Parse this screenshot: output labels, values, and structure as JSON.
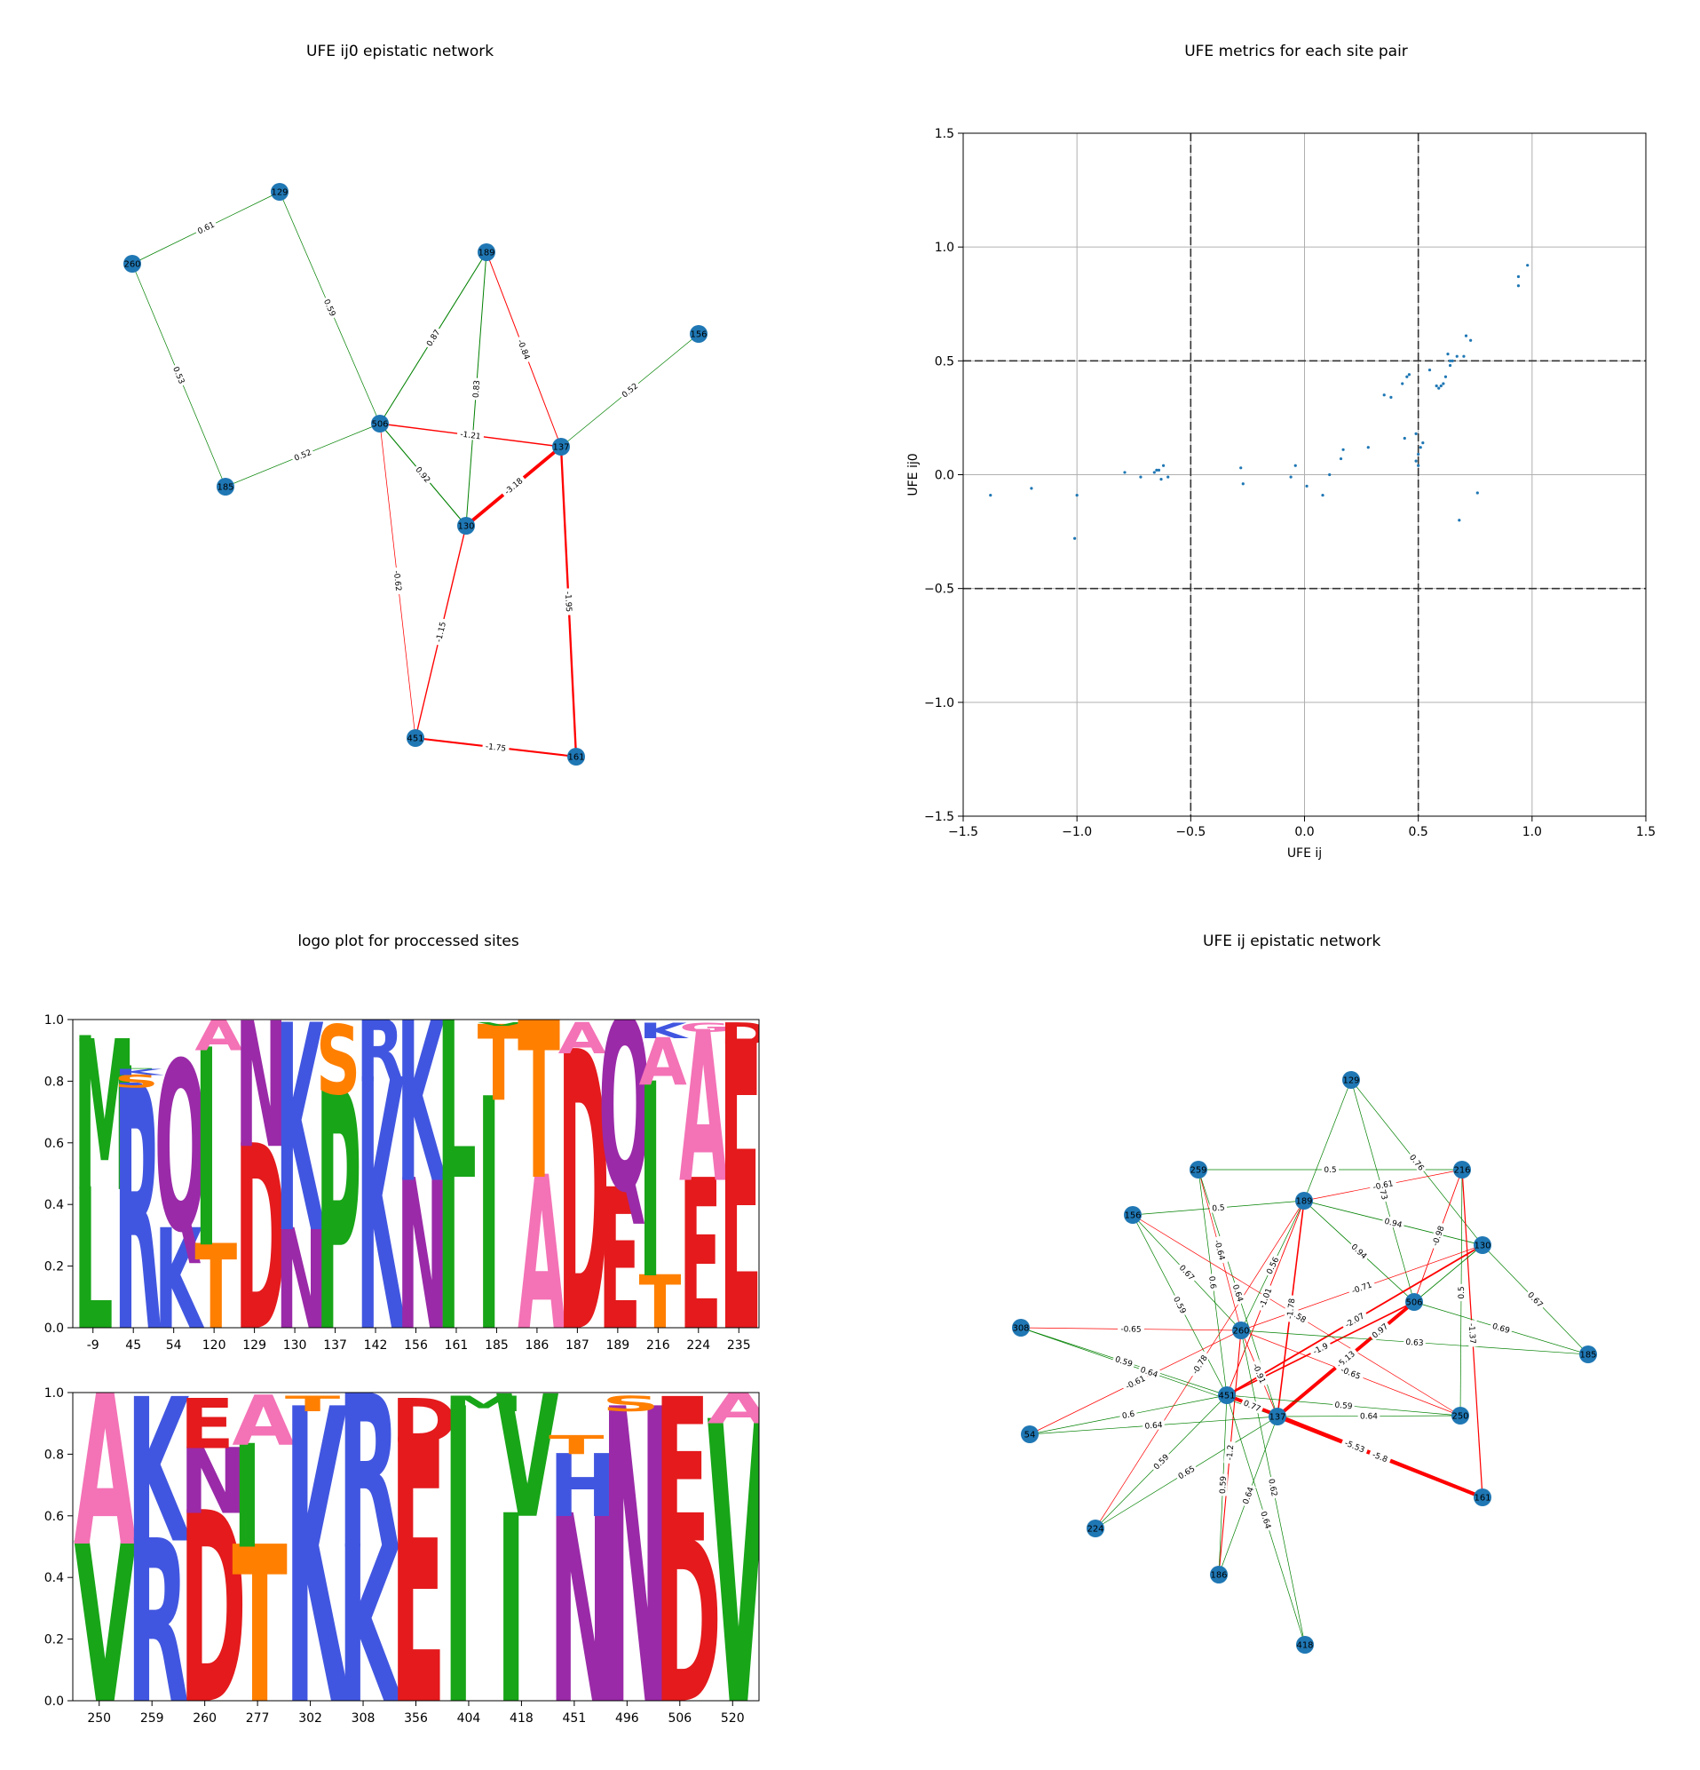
{
  "net1": {
    "title": "UFE ij0 epistatic network",
    "nodes": [
      "129",
      "260",
      "189",
      "156",
      "506",
      "137",
      "185",
      "130",
      "451",
      "161"
    ],
    "edges": [
      {
        "a": "260",
        "b": "129",
        "w": 0.61,
        "label": "0.61"
      },
      {
        "a": "129",
        "b": "506",
        "w": 0.59,
        "label": "0.59"
      },
      {
        "a": "260",
        "b": "185",
        "w": 0.53,
        "label": "0.53"
      },
      {
        "a": "185",
        "b": "506",
        "w": 0.52,
        "label": "0.52"
      },
      {
        "a": "506",
        "b": "189",
        "w": 0.87,
        "label": "0.87"
      },
      {
        "a": "189",
        "b": "130",
        "w": 0.83,
        "label": "0.83"
      },
      {
        "a": "189",
        "b": "137",
        "w": -0.84,
        "label": "-0.84"
      },
      {
        "a": "156",
        "b": "137",
        "w": 0.52,
        "label": "0.52"
      },
      {
        "a": "506",
        "b": "137",
        "w": -1.21,
        "label": "-1.21"
      },
      {
        "a": "506",
        "b": "130",
        "w": 0.92,
        "label": "0.92"
      },
      {
        "a": "130",
        "b": "137",
        "w": -3.18,
        "label": "-3.18"
      },
      {
        "a": "506",
        "b": "451",
        "w": -0.62,
        "label": "-0.62"
      },
      {
        "a": "130",
        "b": "451",
        "w": -1.15,
        "label": "-1.15"
      },
      {
        "a": "137",
        "b": "161",
        "w": -1.95,
        "label": "-1.95"
      },
      {
        "a": "451",
        "b": "161",
        "w": -1.75,
        "label": "-1.75"
      }
    ]
  },
  "scatter": {
    "title": "UFE metrics for each site pair",
    "xlabel": "UFE ij",
    "ylabel": "UFE ij0",
    "tick_labels": [
      "−1.5",
      "−1.0",
      "−0.5",
      "0.0",
      "0.5",
      "1.0",
      "1.5"
    ]
  },
  "logo": {
    "title": "logo plot for proccessed sites",
    "ytick_labels": [
      "0.0",
      "0.2",
      "0.4",
      "0.6",
      "0.8",
      "1.0"
    ]
  },
  "net2": {
    "title": "UFE ij epistatic network",
    "nodes": [
      "129",
      "259",
      "216",
      "156",
      "189",
      "130",
      "506",
      "308",
      "260",
      "185",
      "451",
      "137",
      "250",
      "54",
      "161",
      "224",
      "186",
      "418"
    ],
    "edges": [
      {
        "a": "129",
        "b": "189",
        "w": 0.6,
        "label": ""
      },
      {
        "a": "129",
        "b": "506",
        "w": 0.73,
        "label": "0.73"
      },
      {
        "a": "129",
        "b": "130",
        "w": 0.76,
        "label": "0.76"
      },
      {
        "a": "259",
        "b": "216",
        "w": 0.5,
        "label": "0.5"
      },
      {
        "a": "259",
        "b": "260",
        "w": -0.64,
        "label": "-0.64"
      },
      {
        "a": "259",
        "b": "451",
        "w": 0.6,
        "label": "0.6"
      },
      {
        "a": "259",
        "b": "137",
        "w": 0.64,
        "label": "0.64"
      },
      {
        "a": "156",
        "b": "189",
        "w": 0.5,
        "label": "0.5"
      },
      {
        "a": "156",
        "b": "260",
        "w": 0.67,
        "label": "0.67"
      },
      {
        "a": "156",
        "b": "451",
        "w": 0.59,
        "label": "0.59"
      },
      {
        "a": "156",
        "b": "250",
        "w": -0.58,
        "label": "-0.58"
      },
      {
        "a": "189",
        "b": "216",
        "w": -0.61,
        "label": "-0.61"
      },
      {
        "a": "189",
        "b": "130",
        "w": 0.94,
        "label": "0.94"
      },
      {
        "a": "189",
        "b": "506",
        "w": 0.94,
        "label": "0.94"
      },
      {
        "a": "189",
        "b": "260",
        "w": 0.56,
        "label": "0.56"
      },
      {
        "a": "189",
        "b": "137",
        "w": -1.78,
        "label": "-1.78"
      },
      {
        "a": "189",
        "b": "224",
        "w": -0.78,
        "label": "-0.78"
      },
      {
        "a": "189",
        "b": "451",
        "w": -1.01,
        "label": "-1.01"
      },
      {
        "a": "216",
        "b": "506",
        "w": -0.98,
        "label": "-0.98"
      },
      {
        "a": "216",
        "b": "250",
        "w": 0.5,
        "label": "0.5"
      },
      {
        "a": "216",
        "b": "161",
        "w": -1.37,
        "label": "-1.37"
      },
      {
        "a": "130",
        "b": "185",
        "w": 0.67,
        "label": "0.67"
      },
      {
        "a": "130",
        "b": "451",
        "w": -2.07,
        "label": "-2.07"
      },
      {
        "a": "130",
        "b": "137",
        "w": 0.97,
        "label": "0.97"
      },
      {
        "a": "130",
        "b": "260",
        "w": -0.71,
        "label": "-0.71"
      },
      {
        "a": "506",
        "b": "185",
        "w": 0.69,
        "label": "0.69"
      },
      {
        "a": "506",
        "b": "451",
        "w": -1.9,
        "label": "-1.9"
      },
      {
        "a": "506",
        "b": "137",
        "w": -5.13,
        "label": "-5.13"
      },
      {
        "a": "260",
        "b": "185",
        "w": 0.63,
        "label": "0.63"
      },
      {
        "a": "260",
        "b": "250",
        "w": -0.65,
        "label": "-0.65"
      },
      {
        "a": "260",
        "b": "137",
        "w": -0.91,
        "label": "-0.91"
      },
      {
        "a": "260",
        "b": "54",
        "w": -0.61,
        "label": "-0.61"
      },
      {
        "a": "260",
        "b": "418",
        "w": 0.62,
        "label": "0.62"
      },
      {
        "a": "260",
        "b": "186",
        "w": -1.2,
        "label": "-1.2"
      },
      {
        "a": "308",
        "b": "260",
        "w": -0.65,
        "label": "-0.65"
      },
      {
        "a": "308",
        "b": "451",
        "w": 0.59,
        "label": "0.59"
      },
      {
        "a": "308",
        "b": "137",
        "w": 0.64,
        "label": "0.64"
      },
      {
        "a": "451",
        "b": "137",
        "w": 0.77,
        "label": "0.77"
      },
      {
        "a": "451",
        "b": "250",
        "w": 0.59,
        "label": "0.59"
      },
      {
        "a": "451",
        "b": "54",
        "w": 0.6,
        "label": "0.6"
      },
      {
        "a": "451",
        "b": "224",
        "w": 0.59,
        "label": "0.59"
      },
      {
        "a": "451",
        "b": "186",
        "w": 0.59,
        "label": "0.59"
      },
      {
        "a": "451",
        "b": "418",
        "w": 0.64,
        "label": "0.64"
      },
      {
        "a": "451",
        "b": "161",
        "w": -5.53,
        "label": "-5.53"
      },
      {
        "a": "137",
        "b": "250",
        "w": 0.64,
        "label": "0.64"
      },
      {
        "a": "137",
        "b": "161",
        "w": -5.8,
        "label": "-5.8"
      },
      {
        "a": "137",
        "b": "54",
        "w": 0.64,
        "label": "0.64"
      },
      {
        "a": "137",
        "b": "224",
        "w": 0.65,
        "label": "0.65"
      },
      {
        "a": "137",
        "b": "186",
        "w": 0.64,
        "label": "0.64"
      }
    ]
  },
  "colors": {
    "node": "#1f77b4",
    "positive_edge": "green",
    "negative_edge": "red",
    "point": "#1f77b4",
    "grid": "#b0b0b0",
    "A": "#f472b6",
    "C": "#f5e642",
    "D": "#e41a1c",
    "E": "#e41a1c",
    "F": "#2a2a2a",
    "G": "#f472b6",
    "H": "#4156e0",
    "I": "#18a518",
    "K": "#4156e0",
    "L": "#18a518",
    "M": "#18a518",
    "N": "#9a2aa8",
    "P": "#18a518",
    "Q": "#9a2aa8",
    "R": "#4156e0",
    "S": "#ff7f00",
    "T": "#ff7f00",
    "V": "#18a518",
    "W": "#2a2a2a",
    "Y": "#2a2a2a"
  },
  "chart_data": [
    {
      "type": "network",
      "title": "UFE ij0 epistatic network",
      "note_ref": "net1"
    },
    {
      "type": "scatter",
      "title": "UFE metrics for each site pair",
      "xlabel": "UFE ij",
      "ylabel": "UFE ij0",
      "xlim": [
        -1.5,
        1.5
      ],
      "ylim": [
        -1.5,
        1.5
      ],
      "xticks": [
        -1.5,
        -1.0,
        -0.5,
        0.0,
        0.5,
        1.0,
        1.5
      ],
      "yticks": [
        -1.5,
        -1.0,
        -0.5,
        0.0,
        0.5,
        1.0,
        1.5
      ],
      "grid": true,
      "reference_lines": {
        "x": [
          -0.5,
          0.5
        ],
        "y": [
          -0.5,
          0.5
        ]
      },
      "points": [
        [
          -1.38,
          -0.09
        ],
        [
          -1.2,
          -0.06
        ],
        [
          -1.0,
          -0.09
        ],
        [
          -1.01,
          -0.28
        ],
        [
          -0.79,
          0.01
        ],
        [
          -0.72,
          -0.01
        ],
        [
          -0.66,
          0.01
        ],
        [
          -0.65,
          0.02
        ],
        [
          -0.64,
          0.02
        ],
        [
          -0.63,
          -0.02
        ],
        [
          -0.62,
          0.04
        ],
        [
          -0.6,
          -0.01
        ],
        [
          -0.28,
          0.03
        ],
        [
          -0.27,
          -0.04
        ],
        [
          -0.06,
          -0.01
        ],
        [
          -0.04,
          0.04
        ],
        [
          0.01,
          -0.05
        ],
        [
          0.08,
          -0.09
        ],
        [
          0.11,
          0.0
        ],
        [
          0.16,
          0.07
        ],
        [
          0.17,
          0.11
        ],
        [
          0.28,
          0.12
        ],
        [
          0.35,
          0.35
        ],
        [
          0.38,
          0.34
        ],
        [
          0.43,
          0.4
        ],
        [
          0.44,
          0.16
        ],
        [
          0.45,
          0.43
        ],
        [
          0.46,
          0.44
        ],
        [
          0.49,
          0.06
        ],
        [
          0.5,
          0.09
        ],
        [
          0.5,
          0.04
        ],
        [
          0.51,
          0.12
        ],
        [
          0.49,
          0.18
        ],
        [
          0.52,
          0.14
        ],
        [
          0.55,
          0.46
        ],
        [
          0.58,
          0.39
        ],
        [
          0.59,
          0.38
        ],
        [
          0.6,
          0.39
        ],
        [
          0.61,
          0.4
        ],
        [
          0.62,
          0.43
        ],
        [
          0.63,
          0.53
        ],
        [
          0.64,
          0.48
        ],
        [
          0.64,
          0.5
        ],
        [
          0.65,
          0.5
        ],
        [
          0.67,
          0.52
        ],
        [
          0.68,
          -0.2
        ],
        [
          0.7,
          0.52
        ],
        [
          0.71,
          0.61
        ],
        [
          0.73,
          0.59
        ],
        [
          0.76,
          -0.08
        ],
        [
          0.94,
          0.87
        ],
        [
          0.94,
          0.83
        ],
        [
          0.98,
          0.92
        ]
      ]
    },
    {
      "type": "sequence-logo",
      "title": "logo plot for proccessed sites",
      "ylim": [
        0,
        1
      ],
      "positions": [
        {
          "site": "-9",
          "letters": [
            [
              "L",
              0.45
            ],
            [
              "M",
              0.48
            ],
            [
              "I",
              0.02
            ]
          ]
        },
        {
          "site": "45",
          "letters": [
            [
              "R",
              0.78
            ],
            [
              "S",
              0.04
            ],
            [
              "K",
              0.02
            ],
            [
              "L",
              0.01
            ]
          ]
        },
        {
          "site": "54",
          "letters": [
            [
              "K",
              0.32
            ],
            [
              "Q",
              0.54
            ]
          ]
        },
        {
          "site": "120",
          "letters": [
            [
              "T",
              0.27
            ],
            [
              "I",
              0.63
            ],
            [
              "A",
              0.1
            ]
          ]
        },
        {
          "site": "129",
          "letters": [
            [
              "D",
              0.59
            ],
            [
              "N",
              0.4
            ]
          ]
        },
        {
          "site": "130",
          "letters": [
            [
              "N",
              0.32
            ],
            [
              "K",
              0.66
            ]
          ]
        },
        {
          "site": "137",
          "letters": [
            [
              "P",
              0.76
            ],
            [
              "S",
              0.22
            ]
          ]
        },
        {
          "site": "142",
          "letters": [
            [
              "K",
              0.8
            ],
            [
              "R",
              0.2
            ]
          ]
        },
        {
          "site": "156",
          "letters": [
            [
              "N",
              0.48
            ],
            [
              "K",
              0.51
            ]
          ]
        },
        {
          "site": "161",
          "letters": [
            [
              "I",
              0.49
            ],
            [
              "L",
              0.5
            ]
          ]
        },
        {
          "site": "185",
          "letters": [
            [
              "I",
              0.74
            ],
            [
              "T",
              0.24
            ],
            [
              "V",
              0.01
            ]
          ]
        },
        {
          "site": "186",
          "letters": [
            [
              "A",
              0.49
            ],
            [
              "T",
              0.5
            ]
          ]
        },
        {
          "site": "187",
          "letters": [
            [
              "D",
              0.89
            ],
            [
              "A",
              0.1
            ]
          ]
        },
        {
          "site": "189",
          "letters": [
            [
              "E",
              0.45
            ],
            [
              "Q",
              0.55
            ]
          ]
        },
        {
          "site": "216",
          "letters": [
            [
              "T",
              0.17
            ],
            [
              "I",
              0.62
            ],
            [
              "A",
              0.15
            ],
            [
              "K",
              0.05
            ]
          ]
        },
        {
          "site": "224",
          "letters": [
            [
              "E",
              0.48
            ],
            [
              "A",
              0.48
            ],
            [
              "G",
              0.03
            ]
          ]
        },
        {
          "site": "235",
          "letters": [
            [
              "E",
              0.92
            ],
            [
              "D",
              0.07
            ]
          ]
        }
      ]
    },
    {
      "type": "sequence-logo",
      "title": "",
      "ylim": [
        0,
        1
      ],
      "positions": [
        {
          "site": "250",
          "letters": [
            [
              "V",
              0.51
            ],
            [
              "A",
              0.48
            ]
          ]
        },
        {
          "site": "259",
          "letters": [
            [
              "R",
              0.52
            ],
            [
              "K",
              0.46
            ]
          ]
        },
        {
          "site": "260",
          "letters": [
            [
              "D",
              0.61
            ],
            [
              "N",
              0.21
            ],
            [
              "E",
              0.16
            ]
          ]
        },
        {
          "site": "277",
          "letters": [
            [
              "T",
              0.5
            ],
            [
              "I",
              0.33
            ],
            [
              "A",
              0.16
            ]
          ]
        },
        {
          "site": "302",
          "letters": [
            [
              "K",
              0.94
            ],
            [
              "T",
              0.05
            ]
          ]
        },
        {
          "site": "308",
          "letters": [
            [
              "K",
              0.5
            ],
            [
              "R",
              0.49
            ]
          ]
        },
        {
          "site": "356",
          "letters": [
            [
              "E",
              0.84
            ],
            [
              "D",
              0.14
            ]
          ]
        },
        {
          "site": "404",
          "letters": [
            [
              "I",
              0.94
            ],
            [
              "M",
              0.05
            ]
          ]
        },
        {
          "site": "418",
          "letters": [
            [
              "I",
              0.6
            ],
            [
              "V",
              0.39
            ]
          ]
        },
        {
          "site": "451",
          "letters": [
            [
              "N",
              0.6
            ],
            [
              "H",
              0.2
            ],
            [
              "T",
              0.06
            ]
          ]
        },
        {
          "site": "496",
          "letters": [
            [
              "N",
              0.94
            ],
            [
              "S",
              0.05
            ]
          ]
        },
        {
          "site": "506",
          "letters": [
            [
              "D",
              0.52
            ],
            [
              "E",
              0.46
            ]
          ]
        },
        {
          "site": "520",
          "letters": [
            [
              "V",
              0.9
            ],
            [
              "A",
              0.1
            ]
          ]
        }
      ]
    },
    {
      "type": "network",
      "title": "UFE ij epistatic network",
      "note_ref": "net2"
    }
  ]
}
